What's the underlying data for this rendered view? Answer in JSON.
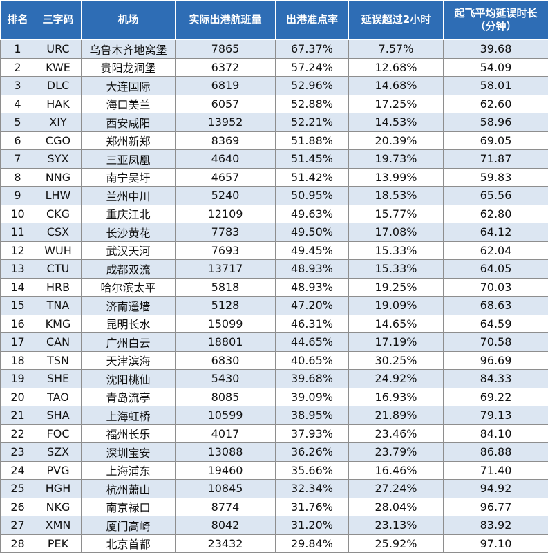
{
  "header": {
    "rank": "排名",
    "code": "三字码",
    "airport": "机场",
    "flights": "实际出港航班量",
    "ontime": "出港准点率",
    "delay2h": "延误超过2小时",
    "avgdelay_line1": "起飞平均延误时长",
    "avgdelay_line2": "（分钟）"
  },
  "rows": [
    {
      "rank": "1",
      "code": "URC",
      "airport": "乌鲁木齐地窝堡",
      "flights": "7865",
      "ontime": "67.37%",
      "delay2h": "7.57%",
      "avgdelay": "39.68"
    },
    {
      "rank": "2",
      "code": "KWE",
      "airport": "贵阳龙洞堡",
      "flights": "6372",
      "ontime": "57.24%",
      "delay2h": "12.68%",
      "avgdelay": "54.09"
    },
    {
      "rank": "3",
      "code": "DLC",
      "airport": "大连国际",
      "flights": "6819",
      "ontime": "52.96%",
      "delay2h": "14.68%",
      "avgdelay": "58.01"
    },
    {
      "rank": "4",
      "code": "HAK",
      "airport": "海口美兰",
      "flights": "6057",
      "ontime": "52.88%",
      "delay2h": "17.25%",
      "avgdelay": "62.60"
    },
    {
      "rank": "5",
      "code": "XIY",
      "airport": "西安咸阳",
      "flights": "13952",
      "ontime": "52.21%",
      "delay2h": "14.53%",
      "avgdelay": "58.96"
    },
    {
      "rank": "6",
      "code": "CGO",
      "airport": "郑州新郑",
      "flights": "8369",
      "ontime": "51.88%",
      "delay2h": "20.39%",
      "avgdelay": "69.05"
    },
    {
      "rank": "7",
      "code": "SYX",
      "airport": "三亚凤凰",
      "flights": "4640",
      "ontime": "51.45%",
      "delay2h": "19.73%",
      "avgdelay": "71.87"
    },
    {
      "rank": "8",
      "code": "NNG",
      "airport": "南宁吴圩",
      "flights": "4657",
      "ontime": "51.42%",
      "delay2h": "13.99%",
      "avgdelay": "59.83"
    },
    {
      "rank": "9",
      "code": "LHW",
      "airport": "兰州中川",
      "flights": "5240",
      "ontime": "50.95%",
      "delay2h": "18.53%",
      "avgdelay": "65.56"
    },
    {
      "rank": "10",
      "code": "CKG",
      "airport": "重庆江北",
      "flights": "12109",
      "ontime": "49.63%",
      "delay2h": "15.77%",
      "avgdelay": "62.80"
    },
    {
      "rank": "11",
      "code": "CSX",
      "airport": "长沙黄花",
      "flights": "7783",
      "ontime": "49.50%",
      "delay2h": "17.08%",
      "avgdelay": "64.12"
    },
    {
      "rank": "12",
      "code": "WUH",
      "airport": "武汉天河",
      "flights": "7693",
      "ontime": "49.45%",
      "delay2h": "15.33%",
      "avgdelay": "62.04"
    },
    {
      "rank": "13",
      "code": "CTU",
      "airport": "成都双流",
      "flights": "13717",
      "ontime": "48.93%",
      "delay2h": "15.33%",
      "avgdelay": "64.05"
    },
    {
      "rank": "14",
      "code": "HRB",
      "airport": "哈尔滨太平",
      "flights": "5818",
      "ontime": "48.93%",
      "delay2h": "19.25%",
      "avgdelay": "70.03"
    },
    {
      "rank": "15",
      "code": "TNA",
      "airport": "济南遥墙",
      "flights": "5128",
      "ontime": "47.20%",
      "delay2h": "19.09%",
      "avgdelay": "68.63"
    },
    {
      "rank": "16",
      "code": "KMG",
      "airport": "昆明长水",
      "flights": "15099",
      "ontime": "46.31%",
      "delay2h": "14.65%",
      "avgdelay": "64.59"
    },
    {
      "rank": "17",
      "code": "CAN",
      "airport": "广州白云",
      "flights": "18801",
      "ontime": "44.65%",
      "delay2h": "17.19%",
      "avgdelay": "70.58"
    },
    {
      "rank": "18",
      "code": "TSN",
      "airport": "天津滨海",
      "flights": "6830",
      "ontime": "40.65%",
      "delay2h": "30.25%",
      "avgdelay": "96.69"
    },
    {
      "rank": "19",
      "code": "SHE",
      "airport": "沈阳桃仙",
      "flights": "5430",
      "ontime": "39.68%",
      "delay2h": "24.92%",
      "avgdelay": "84.33"
    },
    {
      "rank": "20",
      "code": "TAO",
      "airport": "青岛流亭",
      "flights": "8085",
      "ontime": "39.09%",
      "delay2h": "16.93%",
      "avgdelay": "69.22"
    },
    {
      "rank": "21",
      "code": "SHA",
      "airport": "上海虹桥",
      "flights": "10599",
      "ontime": "38.95%",
      "delay2h": "21.89%",
      "avgdelay": "79.13"
    },
    {
      "rank": "22",
      "code": "FOC",
      "airport": "福州长乐",
      "flights": "4017",
      "ontime": "37.93%",
      "delay2h": "23.46%",
      "avgdelay": "84.10"
    },
    {
      "rank": "23",
      "code": "SZX",
      "airport": "深圳宝安",
      "flights": "13088",
      "ontime": "36.26%",
      "delay2h": "23.79%",
      "avgdelay": "86.88"
    },
    {
      "rank": "24",
      "code": "PVG",
      "airport": "上海浦东",
      "flights": "19460",
      "ontime": "35.66%",
      "delay2h": "16.46%",
      "avgdelay": "71.40"
    },
    {
      "rank": "25",
      "code": "HGH",
      "airport": "杭州萧山",
      "flights": "10845",
      "ontime": "32.34%",
      "delay2h": "27.24%",
      "avgdelay": "94.92"
    },
    {
      "rank": "26",
      "code": "NKG",
      "airport": "南京禄口",
      "flights": "8774",
      "ontime": "31.76%",
      "delay2h": "28.04%",
      "avgdelay": "96.77"
    },
    {
      "rank": "27",
      "code": "XMN",
      "airport": "厦门高崎",
      "flights": "8042",
      "ontime": "31.20%",
      "delay2h": "23.13%",
      "avgdelay": "83.92"
    },
    {
      "rank": "28",
      "code": "PEK",
      "airport": "北京首都",
      "flights": "23432",
      "ontime": "29.84%",
      "delay2h": "25.92%",
      "avgdelay": "97.10"
    }
  ]
}
